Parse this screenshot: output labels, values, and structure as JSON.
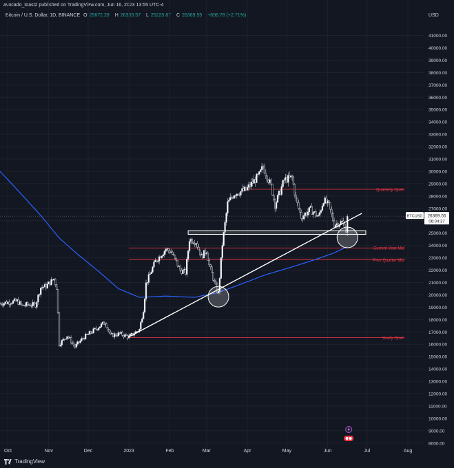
{
  "header": {
    "published": "avocado_toast2 published on TradingView.com, Jun 16, 2023 13:55 UTC-4",
    "symbol": "Bitcoin / U.S. Dollar, 1D, BINANCE",
    "open_label": "O",
    "open": "25672.28",
    "high_label": "H",
    "high": "26369.57",
    "low_label": "L",
    "low": "25225.87",
    "close_label": "C",
    "close": "26369.55",
    "change": "+696.78 (+2.71%)"
  },
  "footer": {
    "brand": "TradingView",
    "logo_icon": "tradingview-logo-icon"
  },
  "colors": {
    "background": "#131722",
    "up": "#d1d4dc",
    "down": "#d1d4dc",
    "ma": "#2962ff",
    "level": "#f23645",
    "trendline": "#ffffff"
  },
  "chart_data": {
    "type": "candlestick",
    "symbol": "BTCUSD",
    "currency": "USD",
    "ylim": [
      7600,
      42200
    ],
    "y_ticks": [
      8000,
      9000,
      10000,
      11000,
      12000,
      13000,
      14000,
      15000,
      16000,
      17000,
      18000,
      19000,
      20000,
      21000,
      22000,
      23000,
      24000,
      25000,
      26000,
      27000,
      28000,
      29000,
      30000,
      31000,
      32000,
      33000,
      34000,
      35000,
      36000,
      37000,
      38000,
      39000,
      40000,
      41000
    ],
    "y_tick_labels": [
      "8000.00",
      "9000.00",
      "10000.00",
      "11000.00",
      "12000.00",
      "13000.00",
      "14000.00",
      "15000.00",
      "16000.00",
      "17000.00",
      "18000.00",
      "19000.00",
      "20000.00",
      "21000.00",
      "22000.00",
      "23000.00",
      "24000.00",
      "25000.00",
      "26000.00",
      "27000.00",
      "28000.00",
      "29000.00",
      "30000.00",
      "31000.00",
      "32000.00",
      "33000.00",
      "34000.00",
      "35000.00",
      "36000.00",
      "37000.00",
      "38000.00",
      "39000.00",
      "40000.00",
      "41000.00"
    ],
    "x_range": [
      "2022-09-25",
      "2023-08-13"
    ],
    "x_ticks": [
      {
        "label": "Oct",
        "date": "2022-10-01"
      },
      {
        "label": "Nov",
        "date": "2022-11-01"
      },
      {
        "label": "Dec",
        "date": "2022-12-01"
      },
      {
        "label": "2023",
        "date": "2023-01-01"
      },
      {
        "label": "Feb",
        "date": "2023-02-01"
      },
      {
        "label": "Mar",
        "date": "2023-03-01"
      },
      {
        "label": "Apr",
        "date": "2023-04-01"
      },
      {
        "label": "May",
        "date": "2023-05-01"
      },
      {
        "label": "Jun",
        "date": "2023-06-01"
      },
      {
        "label": "Jul",
        "date": "2023-07-01"
      },
      {
        "label": "Aug",
        "date": "2023-08-01"
      }
    ],
    "price_path": [
      [
        "2022-09-25",
        19300
      ],
      [
        "2022-10-01",
        19400
      ],
      [
        "2022-10-08",
        19500
      ],
      [
        "2022-10-12",
        19100
      ],
      [
        "2022-10-15",
        19200
      ],
      [
        "2022-10-22",
        19200
      ],
      [
        "2022-10-26",
        20600
      ],
      [
        "2022-10-30",
        20700
      ],
      [
        "2022-11-05",
        21300
      ],
      [
        "2022-11-07",
        20600
      ],
      [
        "2022-11-08",
        18500
      ],
      [
        "2022-11-09",
        16000
      ],
      [
        "2022-11-15",
        16700
      ],
      [
        "2022-11-21",
        15800
      ],
      [
        "2022-11-27",
        16500
      ],
      [
        "2022-12-05",
        17100
      ],
      [
        "2022-12-14",
        17800
      ],
      [
        "2022-12-18",
        16700
      ],
      [
        "2022-12-25",
        16850
      ],
      [
        "2023-01-01",
        16600
      ],
      [
        "2023-01-09",
        17200
      ],
      [
        "2023-01-12",
        18800
      ],
      [
        "2023-01-14",
        20900
      ],
      [
        "2023-01-21",
        22700
      ],
      [
        "2023-01-29",
        23700
      ],
      [
        "2023-02-02",
        23500
      ],
      [
        "2023-02-09",
        22000
      ],
      [
        "2023-02-13",
        21800
      ],
      [
        "2023-02-16",
        24500
      ],
      [
        "2023-02-21",
        24300
      ],
      [
        "2023-02-25",
        23100
      ],
      [
        "2023-03-01",
        23600
      ],
      [
        "2023-03-03",
        22400
      ],
      [
        "2023-03-09",
        20300
      ],
      [
        "2023-03-10",
        20150
      ],
      [
        "2023-03-13",
        24100
      ],
      [
        "2023-03-17",
        27400
      ],
      [
        "2023-03-22",
        28200
      ],
      [
        "2023-03-31",
        28500
      ],
      [
        "2023-04-10",
        29700
      ],
      [
        "2023-04-13",
        30400
      ],
      [
        "2023-04-19",
        28800
      ],
      [
        "2023-04-22",
        27300
      ],
      [
        "2023-04-26",
        28400
      ],
      [
        "2023-04-29",
        29300
      ],
      [
        "2023-05-05",
        29500
      ],
      [
        "2023-05-08",
        27700
      ],
      [
        "2023-05-12",
        26300
      ],
      [
        "2023-05-19",
        26900
      ],
      [
        "2023-05-25",
        26300
      ],
      [
        "2023-05-29",
        27700
      ],
      [
        "2023-06-02",
        27200
      ],
      [
        "2023-06-06",
        25700
      ],
      [
        "2023-06-12",
        25900
      ],
      [
        "2023-06-15",
        25200
      ],
      [
        "2023-06-16",
        26369
      ]
    ],
    "ma_path": [
      [
        "2022-09-25",
        30000
      ],
      [
        "2022-10-10",
        28300
      ],
      [
        "2022-10-27",
        26300
      ],
      [
        "2022-11-09",
        24600
      ],
      [
        "2022-11-24",
        23200
      ],
      [
        "2022-12-09",
        21900
      ],
      [
        "2022-12-24",
        20500
      ],
      [
        "2023-01-09",
        19800
      ],
      [
        "2023-01-29",
        19900
      ],
      [
        "2023-02-20",
        19800
      ],
      [
        "2023-03-10",
        20200
      ],
      [
        "2023-03-28",
        20900
      ],
      [
        "2023-04-14",
        21600
      ],
      [
        "2023-05-03",
        22200
      ],
      [
        "2023-05-21",
        22800
      ],
      [
        "2023-06-06",
        23400
      ],
      [
        "2023-06-16",
        23900
      ]
    ],
    "trendline": {
      "start": [
        "2023-01-01",
        16600
      ],
      "end": [
        "2023-06-27",
        26600
      ]
    },
    "levels": [
      {
        "label": "Quarterly Open",
        "price": 28550,
        "from": "2023-04-01"
      },
      {
        "label": "Current Year Mid",
        "price": 23800,
        "from": "2023-01-01"
      },
      {
        "label": "Prev Quarter Mid",
        "price": 22850,
        "from": "2023-01-01"
      },
      {
        "label": "Yearly Open",
        "price": 16550,
        "from": "2023-01-01"
      }
    ],
    "zone": {
      "from": "2023-02-15",
      "to": "2023-06-30",
      "low": 24900,
      "high": 25200
    },
    "circles": [
      {
        "date": "2023-03-10",
        "price": 19850
      },
      {
        "date": "2023-06-16",
        "price": 24650
      }
    ],
    "last_price": {
      "symbol": "BTCUSD",
      "price_label": "26369.55",
      "price": 26369.55,
      "countdown": "06:04:37"
    },
    "flags": {
      "lightning_date": "2023-06-17",
      "events_date": "2023-06-17",
      "events_icon": "economic-events-icon",
      "lightning_icon": "lightning-icon"
    }
  }
}
